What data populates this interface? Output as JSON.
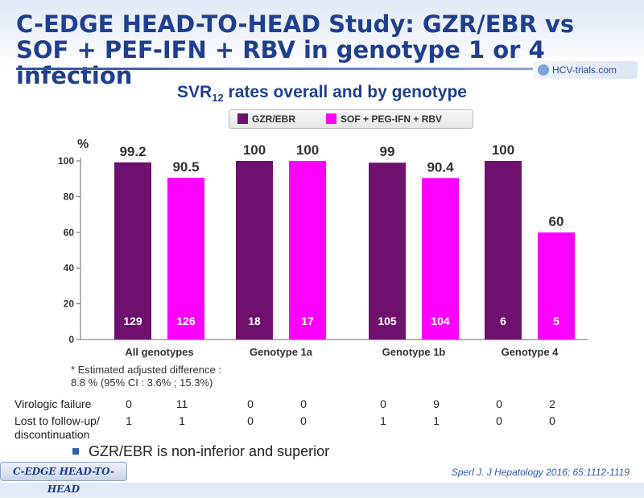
{
  "title": "C-EDGE HEAD-TO-HEAD Study: GZR/EBR vs SOF + PEF-IFN + RBV in genotype 1 or 4 infection",
  "logo_text": "HCV-trials.com",
  "subtitle_main": "SVR",
  "subtitle_sub": "12",
  "subtitle_rest": " rates overall and by genotype",
  "colors": {
    "gzr": "#6f106f",
    "sof": "#ff00ff",
    "title": "#1f3f8f"
  },
  "chart_data": {
    "type": "bar",
    "categories": [
      "All genotypes",
      "Genotype  1a",
      "Genotype  1b",
      "Genotype  4"
    ],
    "series": [
      {
        "name": "GZR/EBR",
        "values": [
          99.2,
          100,
          99,
          100
        ],
        "labels": [
          "99.2",
          "100",
          "99",
          "100"
        ],
        "n": [
          129,
          18,
          105,
          6
        ]
      },
      {
        "name": "SOF + PEG-IFN + RBV",
        "values": [
          90.5,
          100,
          90.4,
          60
        ],
        "labels": [
          "90.5",
          "100",
          "90.4",
          "60"
        ],
        "n": [
          126,
          17,
          104,
          5
        ]
      }
    ],
    "ylabel": "%",
    "ylim": [
      0,
      100
    ],
    "yticks": [
      0,
      20,
      40,
      60,
      80,
      100
    ],
    "legend": "top"
  },
  "note_line1": "* Estimated adjusted difference :",
  "note_line2": "8.8 % (95% CI : 3.6% ; 15.3%)",
  "table": {
    "virologic_failure_label": "Virologic failure",
    "virologic_failure": [
      "0",
      "11",
      "0",
      "0",
      "0",
      "9",
      "0",
      "2"
    ],
    "lost_label_1": "Lost to follow-up/",
    "lost_label_2": "discontinuation",
    "lost": [
      "1",
      "1",
      "0",
      "0",
      "1",
      "1",
      "0",
      "0"
    ]
  },
  "bullet": "GZR/EBR is non-inferior and superior",
  "footer_tag": "C-EDGE HEAD-TO-HEAD",
  "citation": "Sperl J. J Hepatology 2016; 65:1112-1119"
}
